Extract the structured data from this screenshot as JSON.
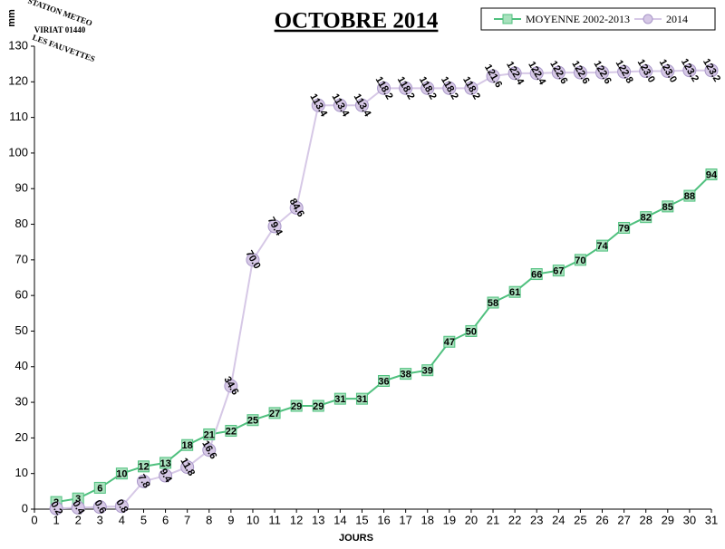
{
  "chart_data": {
    "type": "line",
    "title": "OCTOBRE 2014",
    "y_label": "mm",
    "x_label": "JOURS",
    "annotations": [
      "STATION METEO",
      "VIRIAT 01440",
      "LES FAUVETTES"
    ],
    "x": [
      1,
      2,
      3,
      4,
      5,
      6,
      7,
      8,
      9,
      10,
      11,
      12,
      13,
      14,
      15,
      16,
      17,
      18,
      19,
      20,
      21,
      22,
      23,
      24,
      25,
      26,
      27,
      28,
      29,
      30,
      31
    ],
    "series": [
      {
        "name": "MOYENNE 2002-2013",
        "color": "#4fc07e",
        "marker": "square",
        "values": [
          2,
          3,
          6,
          10,
          12,
          13,
          18,
          21,
          22,
          25,
          27,
          29,
          29,
          31,
          31,
          36,
          38,
          39,
          47,
          50,
          58,
          61,
          66,
          67,
          70,
          74,
          79,
          82,
          85,
          88,
          94
        ]
      },
      {
        "name": "2014",
        "color": "#d6c8e6",
        "marker": "circle",
        "values": [
          0.2,
          0.4,
          0.6,
          0.8,
          7.8,
          9.4,
          11.8,
          16.6,
          34.6,
          70.0,
          79.4,
          84.6,
          113.4,
          113.4,
          113.4,
          118.2,
          118.2,
          118.2,
          118.2,
          118.2,
          121.6,
          122.4,
          122.4,
          122.6,
          122.6,
          122.6,
          122.8,
          123.0,
          123.0,
          123.2,
          123.2
        ],
        "value_labels": [
          "0.2",
          "0.4",
          "0.6",
          "0.8",
          "7.8",
          "9.4",
          "11.8",
          "16.6",
          "34.6",
          "70.0",
          "79.4",
          "84.6",
          "113.4",
          "113.4",
          "113.4",
          "118.2",
          "118.2",
          "118.2",
          "118.2",
          "118.2",
          "121.6",
          "122.4",
          "122.4",
          "122.6",
          "122.6",
          "122.6",
          "122.8",
          "123.0",
          "123.0",
          "123.2",
          "123.2"
        ]
      }
    ],
    "xlim": [
      0,
      31
    ],
    "xticks": [
      0,
      1,
      2,
      3,
      4,
      5,
      6,
      7,
      8,
      9,
      10,
      11,
      12,
      13,
      14,
      15,
      16,
      17,
      18,
      19,
      20,
      21,
      22,
      23,
      24,
      25,
      26,
      27,
      28,
      29,
      30,
      31
    ],
    "ylim": [
      0,
      130
    ],
    "yticks": [
      0,
      10,
      20,
      30,
      40,
      50,
      60,
      70,
      80,
      90,
      100,
      110,
      120,
      130
    ],
    "grid": false,
    "legend": "top-right"
  }
}
